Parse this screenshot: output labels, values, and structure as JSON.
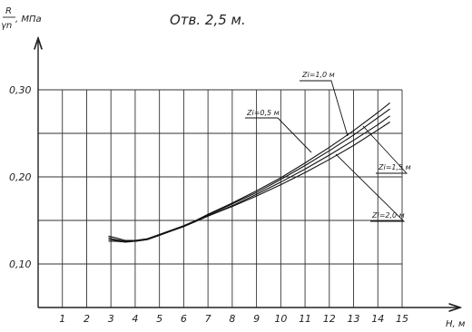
{
  "chart_data": {
    "type": "line",
    "title": "Отв. 2,5 м.",
    "ylabel": {
      "num": "R",
      "den": "γn",
      "unit": ", МПа"
    },
    "xlabel": "H, м",
    "x_ticks": [
      1,
      2,
      3,
      4,
      5,
      6,
      7,
      8,
      9,
      10,
      11,
      12,
      13,
      14,
      15
    ],
    "y_ticks": [
      {
        "value": 0.1,
        "label": "0,10"
      },
      {
        "value": 0.2,
        "label": "0,20"
      },
      {
        "value": 0.3,
        "label": "0,30"
      }
    ],
    "xlim": [
      0,
      15
    ],
    "ylim": [
      0.05,
      0.3
    ],
    "grid": true,
    "series": [
      {
        "name": "Zi=0,5 м",
        "x": [
          2.9,
          3.2,
          3.6,
          4.0,
          4.5,
          5.0,
          5.5,
          6.0,
          6.5,
          7.0,
          8.0,
          9.0,
          10.0,
          11.0,
          12.0,
          13.0,
          14.0,
          14.5
        ],
        "y": [
          0.132,
          0.13,
          0.127,
          0.127,
          0.129,
          0.134,
          0.139,
          0.144,
          0.15,
          0.157,
          0.17,
          0.184,
          0.199,
          0.216,
          0.234,
          0.253,
          0.274,
          0.285
        ]
      },
      {
        "name": "Zi=1,0 м",
        "x": [
          2.9,
          3.2,
          3.6,
          4.0,
          4.5,
          5.0,
          5.5,
          6.0,
          6.5,
          7.0,
          8.0,
          9.0,
          10.0,
          11.0,
          12.0,
          13.0,
          14.0,
          14.5
        ],
        "y": [
          0.13,
          0.128,
          0.126,
          0.126,
          0.128,
          0.133,
          0.138,
          0.143,
          0.149,
          0.156,
          0.169,
          0.182,
          0.197,
          0.213,
          0.23,
          0.248,
          0.268,
          0.278
        ]
      },
      {
        "name": "Zi=1,5 м",
        "x": [
          2.9,
          3.2,
          3.6,
          4.0,
          4.5,
          5.0,
          5.5,
          6.0,
          6.5,
          7.0,
          8.0,
          9.0,
          10.0,
          11.0,
          12.0,
          13.0,
          14.0,
          14.5
        ],
        "y": [
          0.128,
          0.127,
          0.126,
          0.126,
          0.128,
          0.133,
          0.138,
          0.143,
          0.149,
          0.155,
          0.167,
          0.18,
          0.194,
          0.209,
          0.225,
          0.242,
          0.26,
          0.27
        ]
      },
      {
        "name": "Zi=2,0 м",
        "x": [
          2.9,
          3.2,
          3.6,
          4.0,
          4.5,
          5.0,
          5.5,
          6.0,
          6.5,
          7.0,
          8.0,
          9.0,
          10.0,
          11.0,
          12.0,
          13.0,
          14.0,
          14.5
        ],
        "y": [
          0.126,
          0.126,
          0.125,
          0.126,
          0.128,
          0.133,
          0.138,
          0.143,
          0.149,
          0.155,
          0.166,
          0.178,
          0.191,
          0.205,
          0.22,
          0.236,
          0.254,
          0.263
        ]
      }
    ]
  }
}
